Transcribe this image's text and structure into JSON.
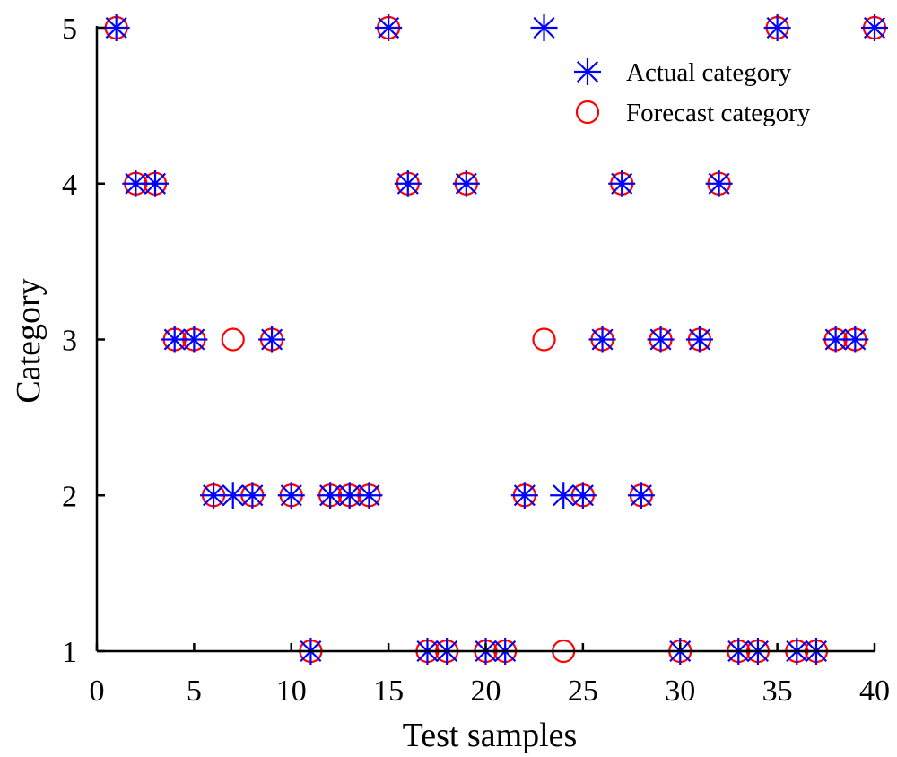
{
  "chart_data": {
    "type": "scatter",
    "title": "",
    "xlabel": "Test samples",
    "ylabel": "Category",
    "xlim": [
      0,
      40
    ],
    "ylim": [
      1,
      5
    ],
    "xticks": [
      0,
      5,
      10,
      15,
      20,
      25,
      30,
      35,
      40
    ],
    "yticks": [
      1,
      2,
      3,
      4,
      5
    ],
    "grid": false,
    "legend_position": "top-right",
    "x": [
      1,
      2,
      3,
      4,
      5,
      6,
      7,
      8,
      9,
      10,
      11,
      12,
      13,
      14,
      15,
      16,
      17,
      18,
      19,
      20,
      21,
      22,
      23,
      24,
      25,
      26,
      27,
      28,
      29,
      30,
      31,
      32,
      33,
      34,
      35,
      36,
      37,
      38,
      39,
      40
    ],
    "series": [
      {
        "name": "Actual category",
        "marker": "asterisk",
        "color": "#0000ff",
        "values": [
          5,
          4,
          4,
          3,
          3,
          2,
          2,
          2,
          3,
          2,
          1,
          2,
          2,
          2,
          5,
          4,
          1,
          1,
          4,
          1,
          1,
          2,
          5,
          2,
          2,
          3,
          4,
          2,
          3,
          1,
          3,
          4,
          1,
          1,
          5,
          1,
          1,
          3,
          3,
          5
        ]
      },
      {
        "name": "Forecast category",
        "marker": "circle",
        "color": "#ff0000",
        "values": [
          5,
          4,
          4,
          3,
          3,
          2,
          3,
          2,
          3,
          2,
          1,
          2,
          2,
          2,
          5,
          4,
          1,
          1,
          4,
          1,
          1,
          2,
          3,
          1,
          2,
          3,
          4,
          2,
          3,
          1,
          3,
          4,
          1,
          1,
          5,
          1,
          1,
          3,
          3,
          5
        ]
      }
    ]
  }
}
